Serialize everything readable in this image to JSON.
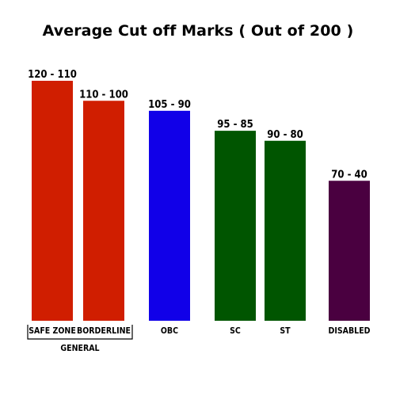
{
  "chart_data": {
    "type": "bar",
    "title": "Average Cut off Marks ( Out of 200 )",
    "xlabel": "",
    "ylabel": "",
    "ylim": [
      0,
      120
    ],
    "categories": [
      "SAFE ZONE",
      "BORDERLINE",
      "OBC",
      "SC",
      "ST",
      "DISABLED"
    ],
    "values": [
      120,
      110,
      105,
      95,
      90,
      70
    ],
    "data_labels": [
      "120 - 110",
      "110 - 100",
      "105 - 90",
      "95 - 85",
      "90 - 80",
      "70 - 40"
    ],
    "colors": [
      "#d01e00",
      "#d01e00",
      "#1100e8",
      "#005500",
      "#005500",
      "#4a0040"
    ],
    "groups": [
      {
        "label": "GENERAL",
        "categories": [
          "SAFE ZONE",
          "BORDERLINE"
        ]
      }
    ],
    "grid": false,
    "legend": "none"
  }
}
